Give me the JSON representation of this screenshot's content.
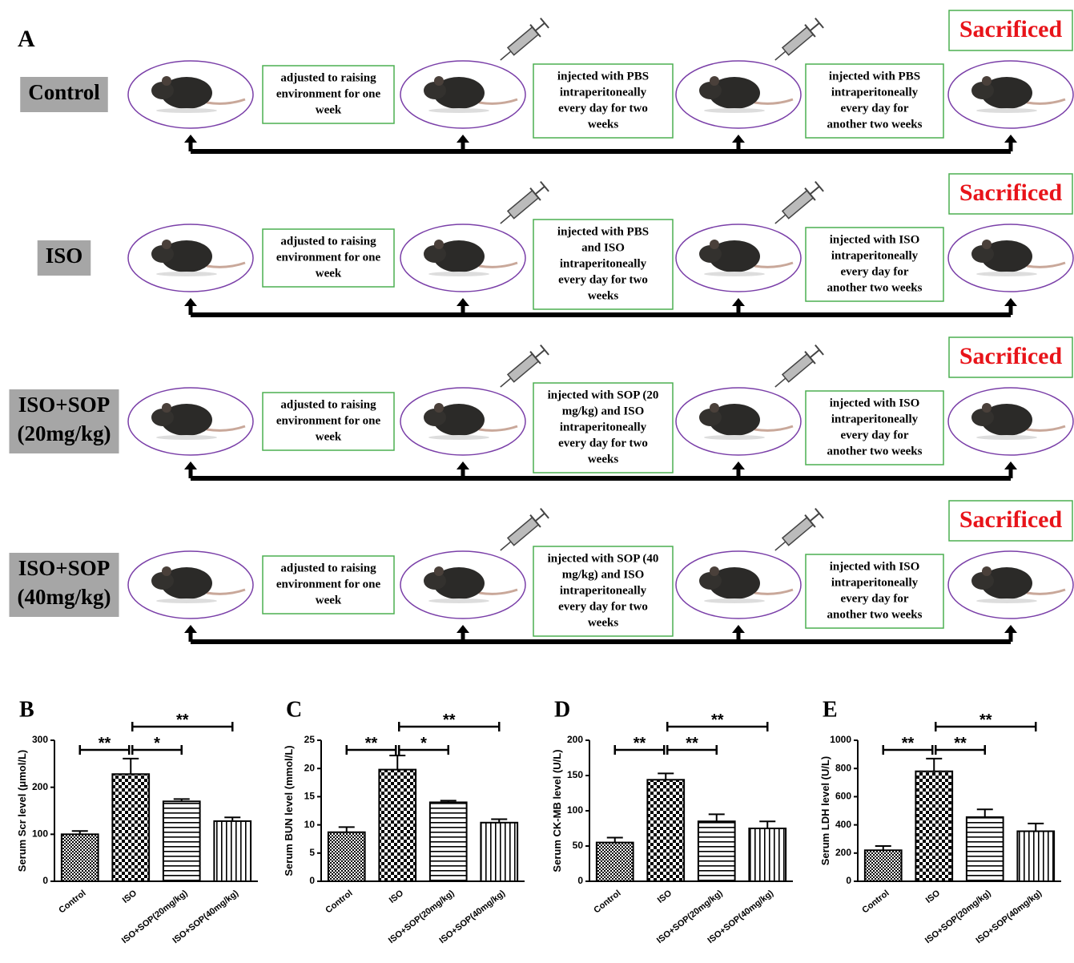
{
  "panel_a": {
    "label": "A",
    "rows": [
      {
        "group": [
          "Control"
        ],
        "steps": [
          [
            "adjusted to raising",
            "environment for one",
            "week"
          ],
          [
            "injected with PBS",
            "intraperitoneally",
            "every day for two",
            "weeks"
          ],
          [
            "injected with PBS",
            "intraperitoneally",
            "every day for",
            "another two weeks"
          ]
        ],
        "end": "Sacrificed"
      },
      {
        "group": [
          "ISO"
        ],
        "steps": [
          [
            "adjusted to raising",
            "environment for one",
            "week"
          ],
          [
            "injected with PBS",
            "and ISO",
            "intraperitoneally",
            "every day for two",
            "weeks"
          ],
          [
            "injected with ISO",
            "intraperitoneally",
            "every day for",
            "another two weeks"
          ]
        ],
        "end": "Sacrificed"
      },
      {
        "group": [
          "ISO+SOP",
          "(20mg/kg)"
        ],
        "steps": [
          [
            "adjusted to raising",
            "environment for one",
            "week"
          ],
          [
            "injected with SOP (20",
            "mg/kg) and ISO",
            "intraperitoneally",
            "every day for two",
            "weeks"
          ],
          [
            "injected with ISO",
            "intraperitoneally",
            "every day for",
            "another two weeks"
          ]
        ],
        "end": "Sacrificed"
      },
      {
        "group": [
          "ISO+SOP",
          "(40mg/kg)"
        ],
        "steps": [
          [
            "adjusted to raising",
            "environment for one",
            "week"
          ],
          [
            "injected with SOP (40",
            "mg/kg) and ISO",
            "intraperitoneally",
            "every day for two",
            "weeks"
          ],
          [
            "injected with ISO",
            "intraperitoneally",
            "every day for",
            "another two weeks"
          ]
        ],
        "end": "Sacrificed"
      }
    ]
  },
  "chart_data": [
    {
      "type": "bar",
      "title": "B",
      "y_label": "Serum Scr level (μmol/L)",
      "categories": [
        "Control",
        "ISO",
        "ISO+SOP(20mg/kg)",
        "ISO+SOP(40mg/kg)"
      ],
      "values": [
        100,
        228,
        170,
        128
      ],
      "error": [
        7,
        33,
        5,
        8
      ],
      "ylim": [
        0,
        300
      ],
      "yticks": [
        0,
        100,
        200,
        300
      ],
      "annotations": [
        {
          "text": "**",
          "from": 0,
          "to": 1
        },
        {
          "text": "*",
          "from": 1,
          "to": 2
        },
        {
          "text": "**",
          "from": 1,
          "to": 3
        }
      ]
    },
    {
      "type": "bar",
      "title": "C",
      "y_label": "Serum BUN level (mmol/L)",
      "categories": [
        "Control",
        "ISO",
        "ISO+SOP(20mg/kg)",
        "ISO+SOP(40mg/kg)"
      ],
      "values": [
        8.7,
        19.8,
        14,
        10.4
      ],
      "error": [
        0.9,
        2.5,
        0.3,
        0.6
      ],
      "ylim": [
        0,
        25
      ],
      "yticks": [
        0,
        5,
        10,
        15,
        20,
        25
      ],
      "annotations": [
        {
          "text": "**",
          "from": 0,
          "to": 1
        },
        {
          "text": "*",
          "from": 1,
          "to": 2
        },
        {
          "text": "**",
          "from": 1,
          "to": 3
        }
      ]
    },
    {
      "type": "bar",
      "title": "D",
      "y_label": "Serum CK-MB level (U/L)",
      "categories": [
        "Control",
        "ISO",
        "ISO+SOP(20mg/kg)",
        "ISO+SOP(40mg/kg)"
      ],
      "values": [
        55,
        144,
        85,
        75
      ],
      "error": [
        7,
        9,
        10,
        10
      ],
      "ylim": [
        0,
        200
      ],
      "yticks": [
        0,
        50,
        100,
        150,
        200
      ],
      "annotations": [
        {
          "text": "**",
          "from": 0,
          "to": 1
        },
        {
          "text": "**",
          "from": 1,
          "to": 2
        },
        {
          "text": "**",
          "from": 1,
          "to": 3
        }
      ]
    },
    {
      "type": "bar",
      "title": "E",
      "y_label": "Serum LDH level (U/L)",
      "categories": [
        "Control",
        "ISO",
        "ISO+SOP(20mg/kg)",
        "ISO+SOP(40mg/kg)"
      ],
      "values": [
        220,
        780,
        455,
        355
      ],
      "error": [
        30,
        90,
        55,
        55
      ],
      "ylim": [
        0,
        1000
      ],
      "yticks": [
        0,
        200,
        400,
        600,
        800,
        1000
      ],
      "annotations": [
        {
          "text": "**",
          "from": 0,
          "to": 1
        },
        {
          "text": "**",
          "from": 1,
          "to": 2
        },
        {
          "text": "**",
          "from": 1,
          "to": 3
        }
      ]
    }
  ]
}
